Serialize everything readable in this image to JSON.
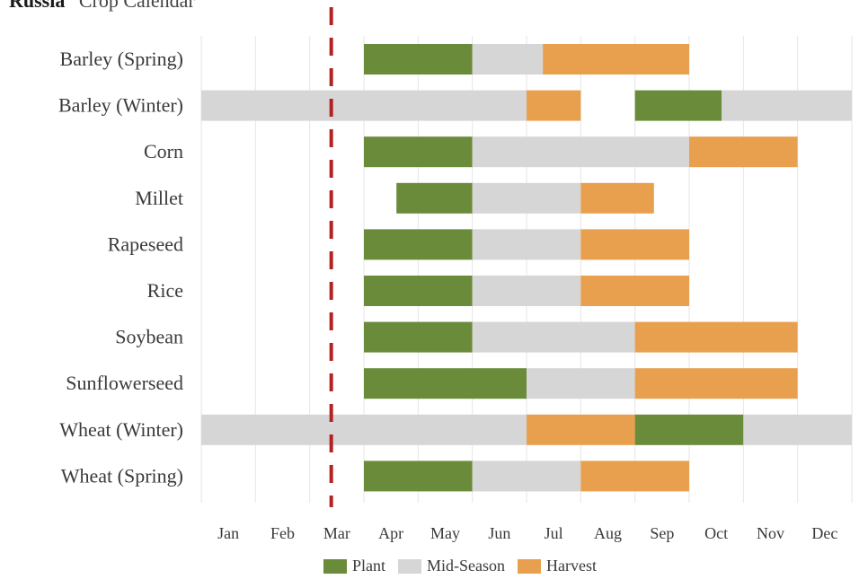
{
  "header": {
    "country": "Russia",
    "subtitle": "Crop Calendar"
  },
  "colors": {
    "plant": "#6a8b3a",
    "mid": "#d6d6d6",
    "harvest": "#e8a04e",
    "marker": "#b22222",
    "grid": "#e6e6e6"
  },
  "legend": [
    {
      "key": "plant",
      "label": "Plant"
    },
    {
      "key": "mid",
      "label": "Mid-Season"
    },
    {
      "key": "harvest",
      "label": "Harvest"
    }
  ],
  "chart_data": {
    "type": "gantt",
    "title": "Russia - Crop Calendar",
    "months": [
      "Jan",
      "Feb",
      "Mar",
      "Apr",
      "May",
      "Jun",
      "Jul",
      "Aug",
      "Sep",
      "Oct",
      "Nov",
      "Dec"
    ],
    "current_marker_month": 3.0,
    "crops": [
      {
        "name": "Barley (Spring)",
        "segments": [
          {
            "phase": "plant",
            "start": 4.0,
            "end": 6.0
          },
          {
            "phase": "mid",
            "start": 6.0,
            "end": 7.3
          },
          {
            "phase": "harvest",
            "start": 7.3,
            "end": 10.0
          }
        ]
      },
      {
        "name": "Barley (Winter)",
        "segments": [
          {
            "phase": "mid",
            "start": 1.0,
            "end": 7.0
          },
          {
            "phase": "harvest",
            "start": 7.0,
            "end": 8.0
          },
          {
            "phase": "plant",
            "start": 9.0,
            "end": 10.6
          },
          {
            "phase": "mid",
            "start": 10.6,
            "end": 13.0
          }
        ]
      },
      {
        "name": "Corn",
        "segments": [
          {
            "phase": "plant",
            "start": 4.0,
            "end": 6.0
          },
          {
            "phase": "mid",
            "start": 6.0,
            "end": 10.0
          },
          {
            "phase": "harvest",
            "start": 10.0,
            "end": 12.0
          }
        ]
      },
      {
        "name": "Millet",
        "segments": [
          {
            "phase": "plant",
            "start": 4.6,
            "end": 6.0
          },
          {
            "phase": "mid",
            "start": 6.0,
            "end": 8.0
          },
          {
            "phase": "harvest",
            "start": 8.0,
            "end": 9.35
          }
        ]
      },
      {
        "name": "Rapeseed",
        "segments": [
          {
            "phase": "plant",
            "start": 4.0,
            "end": 6.0
          },
          {
            "phase": "mid",
            "start": 6.0,
            "end": 8.0
          },
          {
            "phase": "harvest",
            "start": 8.0,
            "end": 10.0
          }
        ]
      },
      {
        "name": "Rice",
        "segments": [
          {
            "phase": "plant",
            "start": 4.0,
            "end": 6.0
          },
          {
            "phase": "mid",
            "start": 6.0,
            "end": 8.0
          },
          {
            "phase": "harvest",
            "start": 8.0,
            "end": 10.0
          }
        ]
      },
      {
        "name": "Soybean",
        "segments": [
          {
            "phase": "plant",
            "start": 4.0,
            "end": 6.0
          },
          {
            "phase": "mid",
            "start": 6.0,
            "end": 9.0
          },
          {
            "phase": "harvest",
            "start": 9.0,
            "end": 12.0
          }
        ]
      },
      {
        "name": "Sunflowerseed",
        "segments": [
          {
            "phase": "plant",
            "start": 4.0,
            "end": 7.0
          },
          {
            "phase": "mid",
            "start": 7.0,
            "end": 9.0
          },
          {
            "phase": "harvest",
            "start": 9.0,
            "end": 12.0
          }
        ]
      },
      {
        "name": "Wheat (Winter)",
        "segments": [
          {
            "phase": "mid",
            "start": 1.0,
            "end": 7.0
          },
          {
            "phase": "harvest",
            "start": 7.0,
            "end": 9.0
          },
          {
            "phase": "plant",
            "start": 9.0,
            "end": 11.0
          },
          {
            "phase": "mid",
            "start": 11.0,
            "end": 13.0
          }
        ]
      },
      {
        "name": "Wheat (Spring)",
        "segments": [
          {
            "phase": "plant",
            "start": 4.0,
            "end": 6.0
          },
          {
            "phase": "mid",
            "start": 6.0,
            "end": 8.0
          },
          {
            "phase": "harvest",
            "start": 8.0,
            "end": 10.0
          }
        ]
      }
    ]
  }
}
